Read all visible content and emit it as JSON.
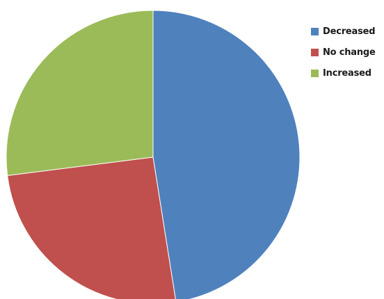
{
  "chart_data": {
    "type": "pie",
    "title": "",
    "slices": [
      {
        "label": "Decreased",
        "value": 47.5,
        "color": "#4f81bd"
      },
      {
        "label": "No change",
        "value": 25.5,
        "color": "#c0504d"
      },
      {
        "label": "Increased",
        "value": 27.0,
        "color": "#9bbb59"
      }
    ],
    "start_angle_deg": 0,
    "direction": "clockwise",
    "legend_position": "top-right"
  }
}
